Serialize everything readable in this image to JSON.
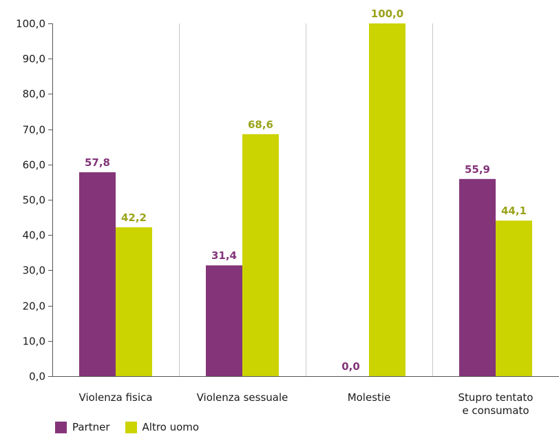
{
  "chart_data": {
    "type": "bar",
    "categories": [
      [
        "Violenza fisica"
      ],
      [
        "Violenza sessuale"
      ],
      [
        "Molestie"
      ],
      [
        "Stupro tentato",
        "e consumato"
      ]
    ],
    "series": [
      {
        "name": "Partner",
        "color": "#84357a",
        "values": [
          57.8,
          31.4,
          0.0,
          55.9
        ],
        "labels": [
          "57,8",
          "31,4",
          "0,0",
          "55,9"
        ]
      },
      {
        "name": "Altro uomo",
        "color": "#cbd300",
        "label_color": "#9aa31a",
        "values": [
          42.2,
          68.6,
          100.0,
          44.1
        ],
        "labels": [
          "42,2",
          "68,6",
          "100,0",
          "44,1"
        ]
      }
    ],
    "ylim": [
      0,
      100
    ],
    "yticks": [
      0,
      10,
      20,
      30,
      40,
      50,
      60,
      70,
      80,
      90,
      100
    ],
    "ytick_labels": [
      "0,0",
      "10,0",
      "20,0",
      "30,0",
      "40,0",
      "50,0",
      "60,0",
      "70,0",
      "80,0",
      "90,0",
      "100,0"
    ],
    "grid": true,
    "legend_position": "bottom-left"
  }
}
